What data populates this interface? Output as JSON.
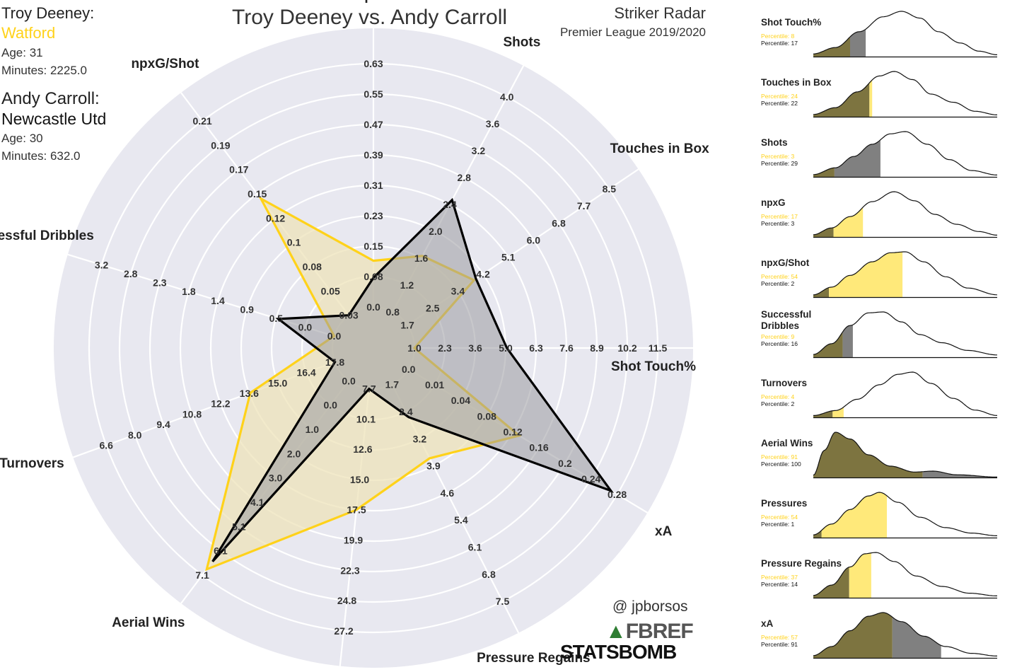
{
  "header": {
    "title": "Troy Deeney vs. Andy Carroll",
    "radar_type": "Striker Radar",
    "competition": "Premier League 2019/2020"
  },
  "players": [
    {
      "name_label": "Troy Deeney:",
      "team": "Watford",
      "age_label": "Age: 31",
      "minutes_label": "Minutes: 2225.0",
      "color": "#FFD21A",
      "fill": "#EDE3B9"
    },
    {
      "name_label": "Andy Carroll:",
      "team": "Newcastle Utd",
      "age_label": "Age: 30",
      "minutes_label": "Minutes: 632.0",
      "color": "#000000",
      "fill": "#9A9AA0"
    }
  ],
  "credits": {
    "handle": "@ jpborsos",
    "fbref": "FBREF",
    "statsbomb": "STATSBOMB"
  },
  "colors": {
    "radar_bg": "#E8E8F0",
    "grid": "#ffffff",
    "deeney": "#FFD21A",
    "carroll": "#000000",
    "deeney_density": "#FFE97A",
    "carroll_density": "#808080",
    "overlap_density": "#7D7440"
  },
  "chart_data": [
    {
      "type": "radar",
      "axes": [
        {
          "label": "npxG",
          "ticks": [
            "0.63",
            "0.55",
            "0.47",
            "0.39",
            "0.31",
            "0.23",
            "0.15",
            "0.08",
            "0.0"
          ],
          "angle_deg": 90
        },
        {
          "label": "Shots",
          "ticks": [
            "4.0",
            "3.6",
            "3.2",
            "2.8",
            "2.4",
            "2.0",
            "1.6",
            "1.2",
            "0.8"
          ],
          "angle_deg": 62
        },
        {
          "label": "Touches in Box",
          "ticks": [
            "8.5",
            "7.7",
            "6.8",
            "6.0",
            "5.1",
            "4.2",
            "3.4",
            "2.5",
            "1.7"
          ],
          "angle_deg": 34
        },
        {
          "label": "Shot Touch%",
          "ticks": [
            "11.5",
            "10.2",
            "8.9",
            "7.6",
            "6.3",
            "5.0",
            "3.6",
            "2.3",
            "1.0"
          ],
          "angle_deg": 0
        },
        {
          "label": "xA",
          "ticks": [
            "0.28",
            "0.24",
            "0.2",
            "0.16",
            "0.12",
            "0.08",
            "0.04",
            "0.01",
            "0.0"
          ],
          "angle_deg": -31
        },
        {
          "label": "Pressure Regains",
          "ticks": [
            "7.5",
            "6.8",
            "6.1",
            "5.4",
            "4.6",
            "3.9",
            "3.2",
            "2.4",
            "1.7"
          ],
          "angle_deg": -63
        },
        {
          "label": "Pressures",
          "ticks": [
            "27.2",
            "24.8",
            "22.3",
            "19.9",
            "17.5",
            "15.0",
            "12.6",
            "10.1",
            "7.7"
          ],
          "angle_deg": -96
        },
        {
          "label": "Aerial Wins",
          "ticks": [
            "7.1",
            "6.1",
            "5.1",
            "4.1",
            "3.0",
            "2.0",
            "1.0",
            "0.0",
            "0.0"
          ],
          "angle_deg": -127
        },
        {
          "label": "Turnovers",
          "ticks": [
            "6.6",
            "8.0",
            "9.4",
            "10.8",
            "12.2",
            "13.6",
            "15.0",
            "16.4",
            "17.8"
          ],
          "angle_deg": -160
        },
        {
          "label": "Successful Dribbles",
          "ticks": [
            "3.2",
            "2.8",
            "2.3",
            "1.8",
            "1.4",
            "0.9",
            "0.5",
            "0.0",
            "0.0"
          ],
          "angle_deg": 163
        },
        {
          "label": "npxG/Shot",
          "ticks": [
            "0.21",
            "0.19",
            "0.17",
            "0.15",
            "0.12",
            "0.1",
            "0.08",
            "0.05",
            "0.03"
          ],
          "angle_deg": 127
        }
      ],
      "rings": 8,
      "series": [
        {
          "name": "Troy Deeney",
          "values": [
            0.19,
            0.26,
            0.33,
            0.0,
            0.53,
            0.34,
            0.5,
            0.97,
            0.37,
            0.0,
            0.6
          ]
        },
        {
          "name": "Andy Carroll",
          "values": [
            0.12,
            0.52,
            0.34,
            0.38,
            0.97,
            0.15,
            0.0,
            0.93,
            0.0,
            0.24,
            0.0
          ]
        }
      ]
    },
    {
      "type": "area",
      "panels": [
        {
          "label": "Shot Touch%",
          "p1_label": "Percentile: 8",
          "p2_label": "Percentile: 17",
          "p1": 8,
          "p2": 17
        },
        {
          "label": "Touches in Box",
          "p1_label": "Percentile: 24",
          "p2_label": "Percentile: 22",
          "p1": 24,
          "p2": 22
        },
        {
          "label": "Shots",
          "p1_label": "Percentile: 3",
          "p2_label": "Percentile: 29",
          "p1": 3,
          "p2": 29
        },
        {
          "label": "npxG",
          "p1_label": "Percentile: 17",
          "p2_label": "Percentile: 3",
          "p1": 17,
          "p2": 3
        },
        {
          "label": "npxG/Shot",
          "p1_label": "Percentile: 54",
          "p2_label": "Percentile: 2",
          "p1": 54,
          "p2": 2
        },
        {
          "label": "Successful Dribbles",
          "p1_label": "Percentile: 9",
          "p2_label": "Percentile: 16",
          "p1": 9,
          "p2": 16
        },
        {
          "label": "Turnovers",
          "p1_label": "Percentile: 4",
          "p2_label": "Percentile: 2",
          "p1": 4,
          "p2": 2
        },
        {
          "label": "Aerial Wins",
          "p1_label": "Percentile: 91",
          "p2_label": "Percentile: 100",
          "p1": 91,
          "p2": 100
        },
        {
          "label": "Pressures",
          "p1_label": "Percentile: 54",
          "p2_label": "Percentile: 1",
          "p1": 54,
          "p2": 1
        },
        {
          "label": "Pressure Regains",
          "p1_label": "Percentile: 37",
          "p2_label": "Percentile: 14",
          "p1": 37,
          "p2": 14
        },
        {
          "label": "xA",
          "p1_label": "Percentile: 57",
          "p2_label": "Percentile: 91",
          "p1": 57,
          "p2": 91
        }
      ]
    }
  ]
}
